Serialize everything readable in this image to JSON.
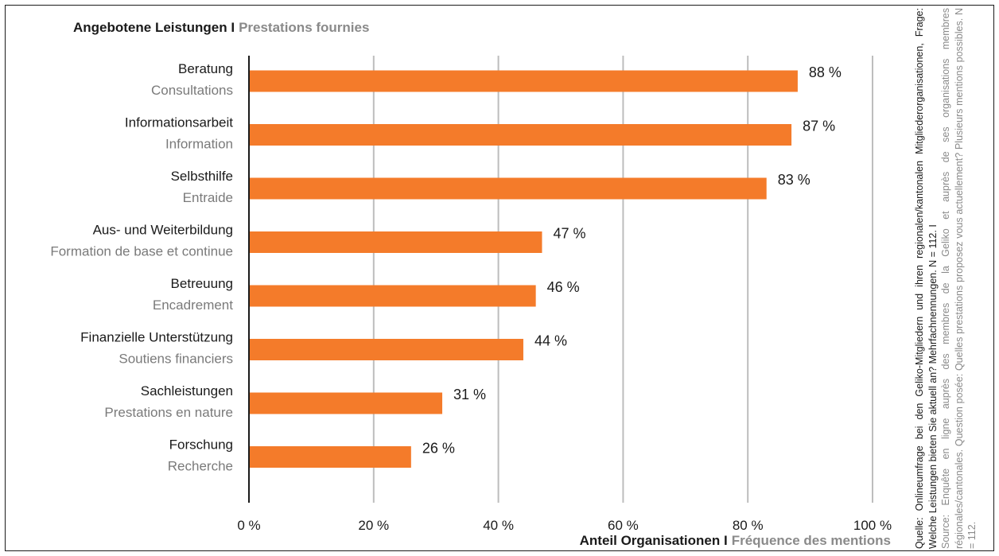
{
  "colors": {
    "bar": "#f47b2a",
    "grid": "#bdbdbd",
    "text": "#1a1a1a",
    "secondary": "#8a8a8a"
  },
  "header": {
    "title_de": "Angebotene Leistungen I",
    "title_fr": "Prestations fournies"
  },
  "axis": {
    "xlabel_de": "Anteil Organisationen I",
    "xlabel_fr": "Fréquence des mentions"
  },
  "source": {
    "de": "Quelle: Onlineumfrage bei den Geliko-Mitgliedern und ihren regionalen/kantonalen Mitglieder­organisationen, Frage: Welche Leistungen bieten Sie aktuell an? Mehrfachnennungen. N = 112. I",
    "fr": "Source: Enquête en ligne auprès des membres de la Geliko et auprès de ses organisations membres régionales/cantonales. Question posée: Quelles prestations proposez vous actuelle­ment? Plusieurs mentions possibles. N = 112."
  },
  "chart_data": {
    "type": "bar",
    "orientation": "horizontal",
    "title": "Angebotene Leistungen I Prestations fournies",
    "xlabel": "Anteil Organisationen I Fréquence des mentions",
    "ylabel": "",
    "xlim": [
      0,
      100
    ],
    "x_ticks": [
      "0 %",
      "20 %",
      "40 %",
      "60 %",
      "80 %",
      "100 %"
    ],
    "grid": true,
    "categories": [
      {
        "de": "Beratung",
        "fr": "Consultations"
      },
      {
        "de": "Informationsarbeit",
        "fr": "Information"
      },
      {
        "de": "Selbsthilfe",
        "fr": "Entraide"
      },
      {
        "de": "Aus- und Weiterbildung",
        "fr": "Formation de base et continue"
      },
      {
        "de": "Betreuung",
        "fr": "Encadrement"
      },
      {
        "de": "Finanzielle Unterstützung",
        "fr": "Soutiens financiers"
      },
      {
        "de": "Sachleistungen",
        "fr": "Prestations en nature"
      },
      {
        "de": "Forschung",
        "fr": "Recherche"
      }
    ],
    "values": [
      88,
      87,
      83,
      47,
      46,
      44,
      31,
      26
    ],
    "value_labels": [
      "88 %",
      "87 %",
      "83 %",
      "47 %",
      "46 %",
      "44 %",
      "31 %",
      "26 %"
    ]
  }
}
